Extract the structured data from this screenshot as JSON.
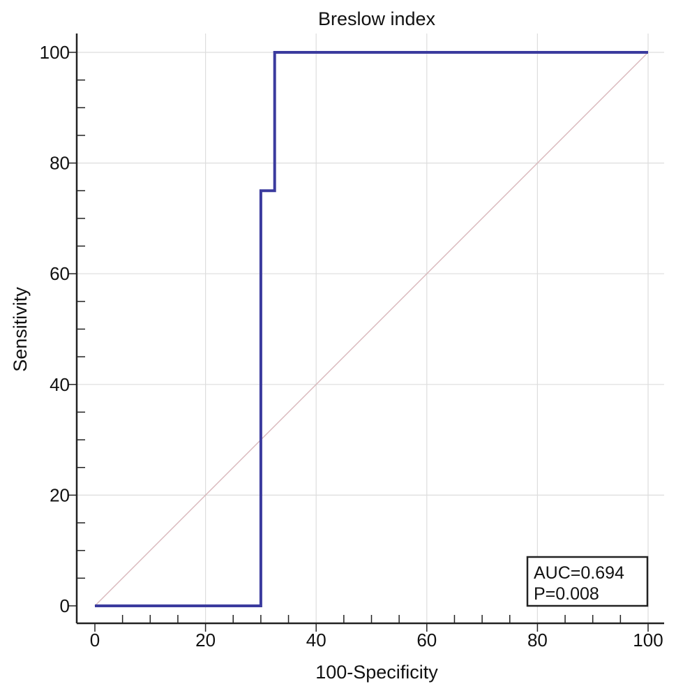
{
  "chart_data": {
    "type": "line",
    "title": "Breslow index",
    "xlabel": "100-Specificity",
    "ylabel": "Sensitivity",
    "xlim": [
      0,
      100
    ],
    "ylim": [
      0,
      100
    ],
    "xticks": [
      0,
      20,
      40,
      60,
      80,
      100
    ],
    "yticks": [
      0,
      20,
      40,
      60,
      80,
      100
    ],
    "grid": true,
    "series": [
      {
        "color": "#3b3b9e",
        "step": true,
        "x": [
          0,
          30,
          30,
          32.5,
          32.5,
          100
        ],
        "y": [
          0,
          0,
          75,
          75,
          100,
          100
        ]
      },
      {
        "color": "#d9b8bc",
        "reference": true,
        "x": [
          0,
          100
        ],
        "y": [
          0,
          100
        ]
      }
    ],
    "annotations": {
      "auc": "AUC=0.694",
      "p": "P=0.008",
      "position": "bottom-right"
    }
  }
}
